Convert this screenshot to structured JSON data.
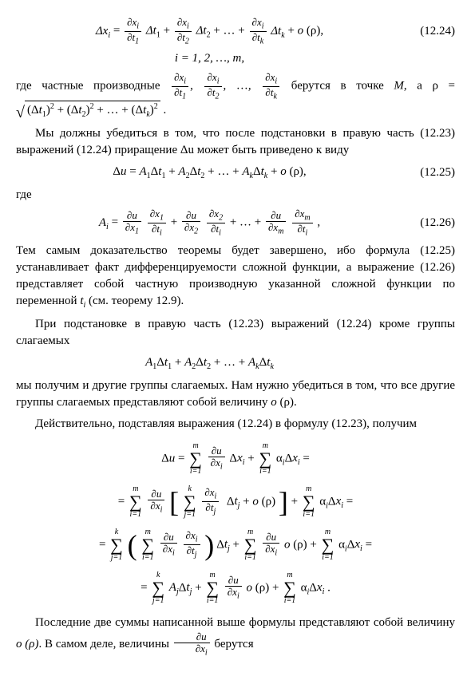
{
  "eq1224": {
    "lhs": "Δx_i =",
    "num": "(12.24)"
  },
  "eq_idx": "i = 1, 2, …, m,",
  "para1": {
    "t1": "где частные производные ",
    "t2": " берутся в точке ",
    "pointM": "M",
    "t3": ", а  ρ = "
  },
  "para2": "Мы должны убедиться в том, что после подстановки в правую часть (12.23) выражений (12.24) приращение Δu может быть приведено к виду",
  "eq1225": {
    "body": "Δu = A₁Δt₁ + A₂Δt₂ + … + A_kΔt_k + o (ρ),",
    "num": "(12.25)"
  },
  "where": "где",
  "eq1226": {
    "num": "(12.26)"
  },
  "para3": "Тем самым доказательство теоремы будет завершено, ибо формула (12.25) устанавливает факт дифференцируемости сложной функции, а выражение (12.26) представляет собой частную производную указанной сложной функции по переменной t_i (см. теорему 12.9).",
  "para4": "При подстановке в правую часть (12.23) выражений (12.24) кроме группы слагаемых",
  "eq_mid": "A₁Δt₁ + A₂Δt₂ + … + A_kΔt_k",
  "para5": "мы получим и другие группы слагаемых. Нам нужно убедиться в том, что все другие группы слагаемых представляют собой величину o (ρ).",
  "para6": "Действительно, подставляя выражения (12.24) в формулу (12.23), получим",
  "para7_a": "Последние две суммы написанной выше формулы представляют собой величину ",
  "para7_b": "o (ρ)",
  "para7_c": ". В самом деле, величины ",
  "para7_d": " берутся"
}
